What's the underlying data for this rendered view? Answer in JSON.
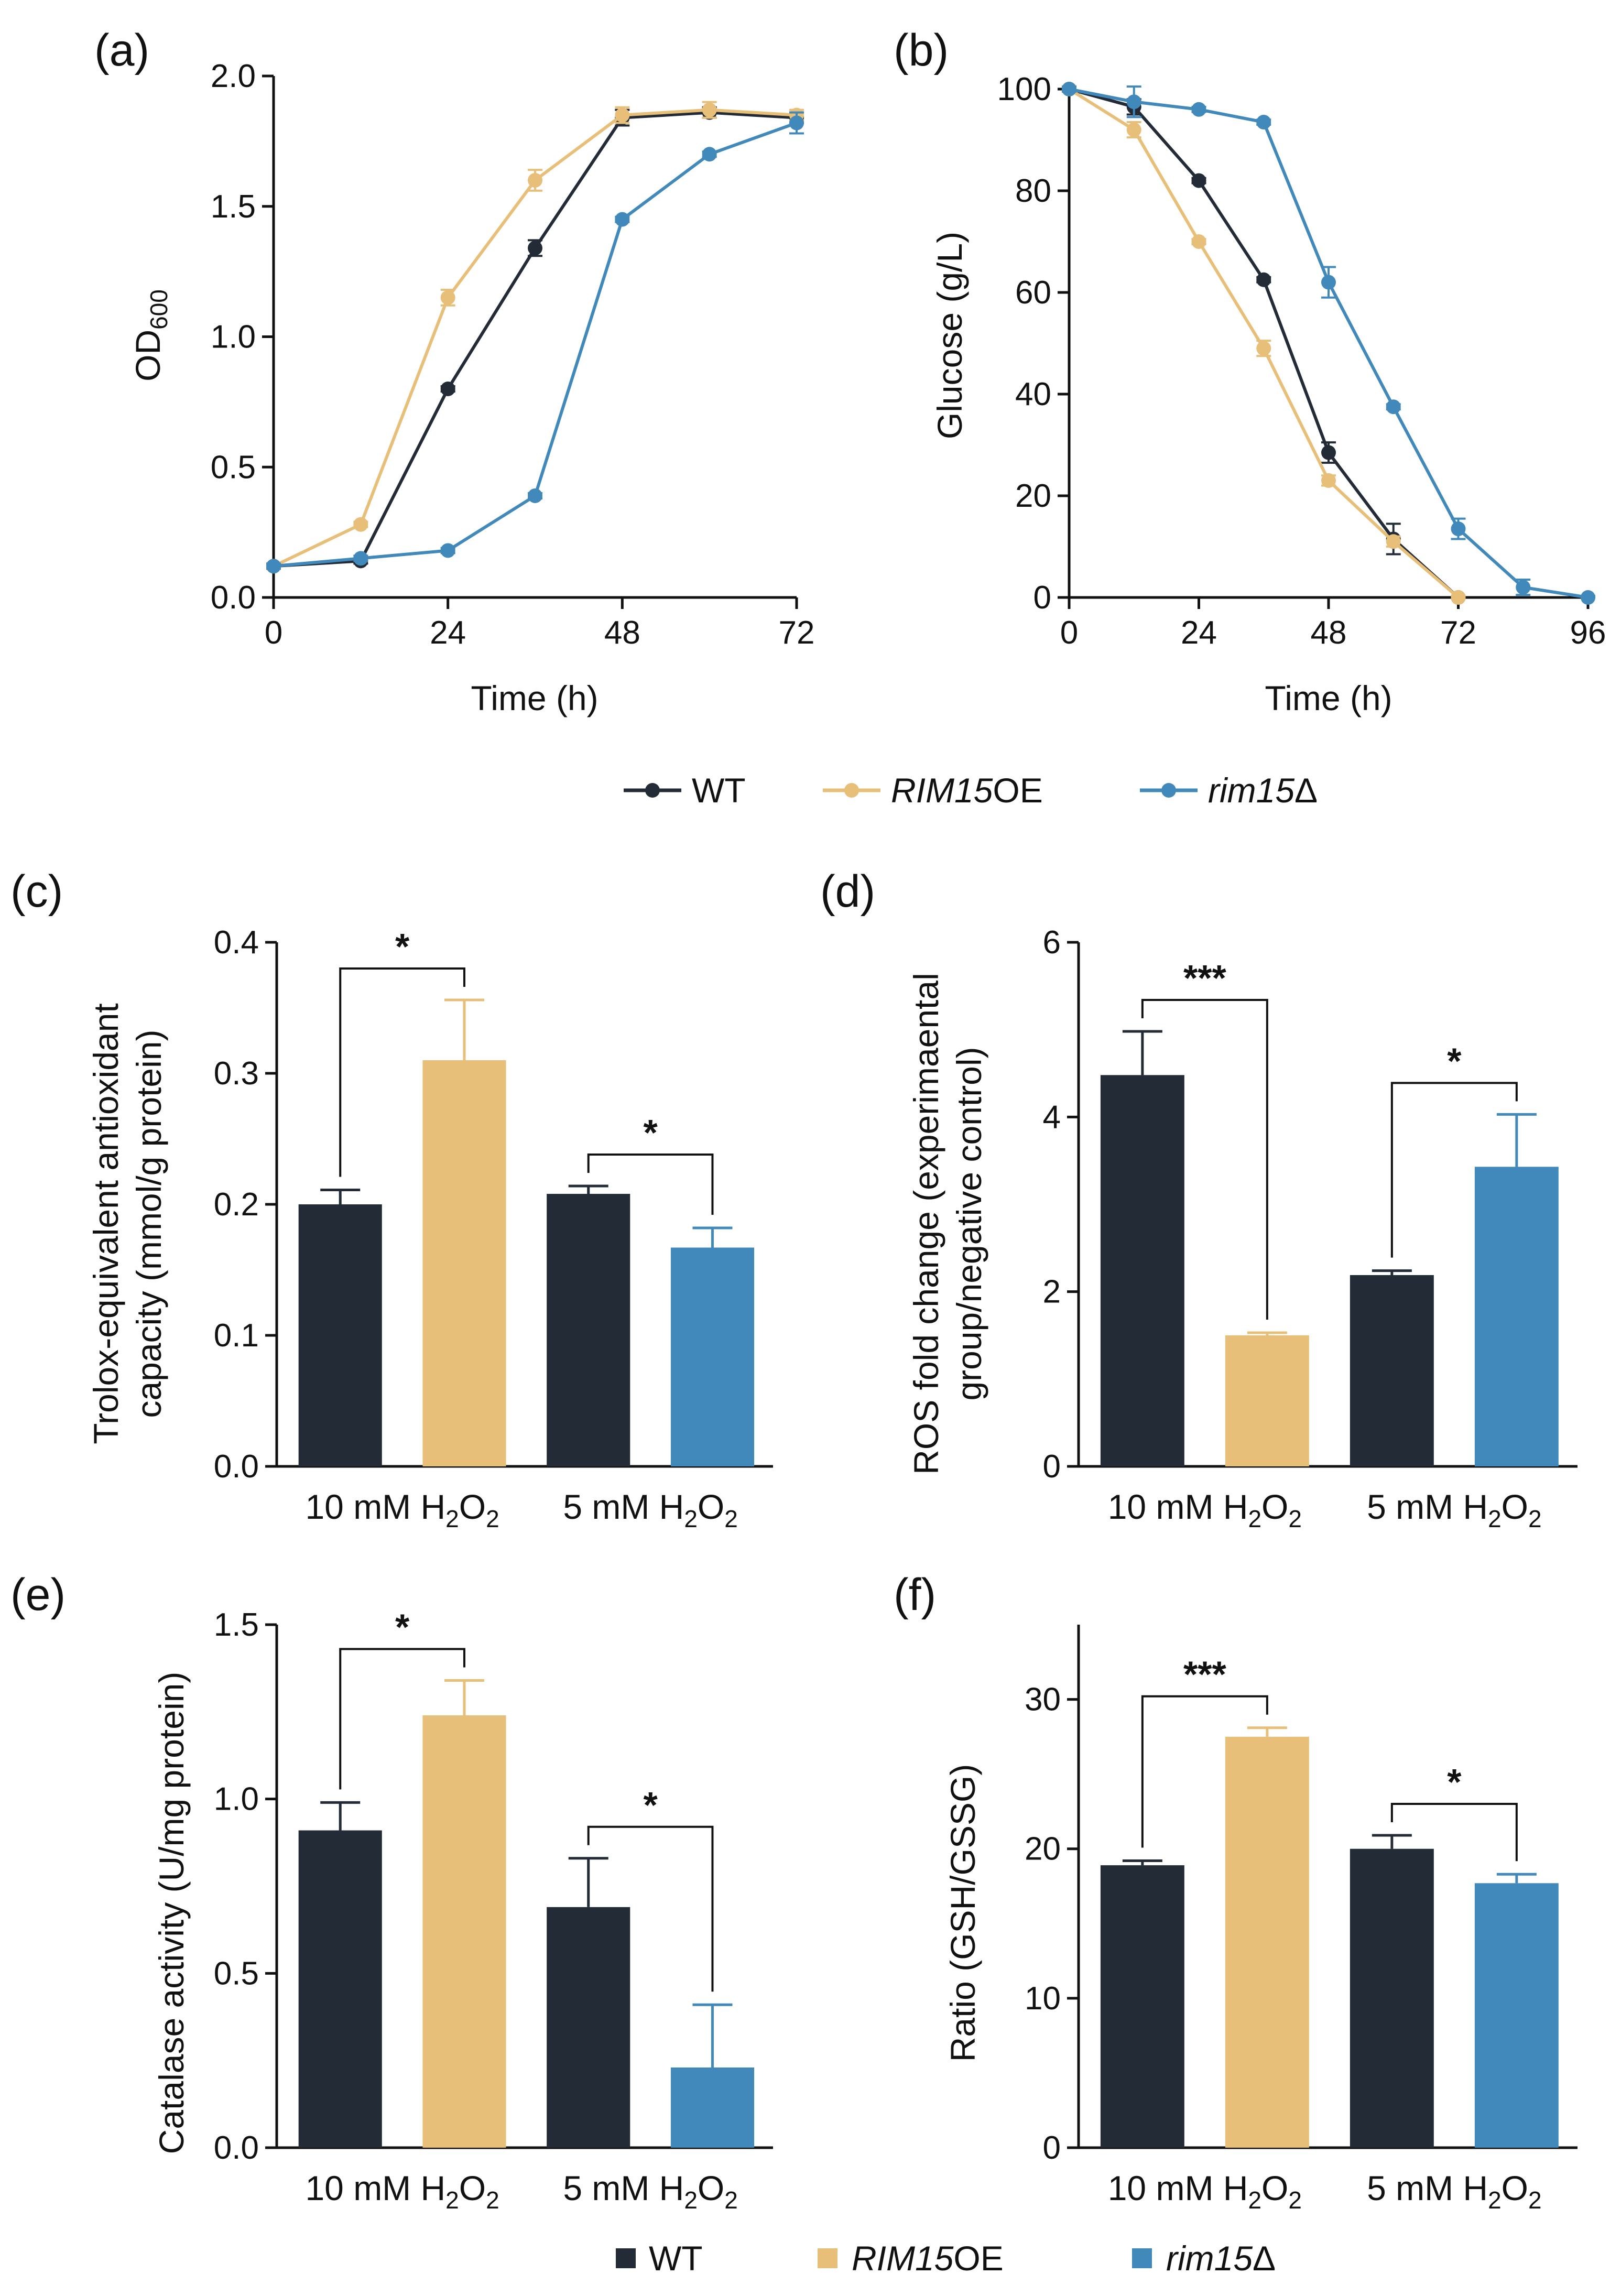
{
  "colors": {
    "WT": "#232b36",
    "RIM15OE": "#e8bf78",
    "rim15D": "#4189bb",
    "axis": "#111111"
  },
  "legend": {
    "wt": "WT",
    "oe_italic": "RIM15",
    "oe_suffix": "OE",
    "del_italic": "rim15",
    "del_suffix": "Δ"
  },
  "group_label": {
    "g10_prefix": "10 mM H",
    "g5_prefix": "5 mM H",
    "sub_2": "2",
    "o": "O"
  },
  "chart_data": [
    {
      "id": "a",
      "type": "line",
      "panel_label": "(a)",
      "xlabel": "Time (h)",
      "ylabel_main": "OD",
      "ylabel_sub": "600",
      "xlim": [
        0,
        72
      ],
      "ylim": [
        0,
        2.0
      ],
      "xticks": [
        0,
        24,
        48,
        72
      ],
      "xtick_labels": [
        "0",
        "24",
        "48",
        "72"
      ],
      "yticks": [
        0,
        0.5,
        1.0,
        1.5,
        2.0
      ],
      "ytick_labels": [
        "0.0",
        "0.5",
        "1.0",
        "1.5",
        "2.0"
      ],
      "series": [
        {
          "name": "WT",
          "color_key": "WT",
          "x": [
            0,
            12,
            24,
            36,
            48,
            60,
            72
          ],
          "y": [
            0.12,
            0.14,
            0.8,
            1.34,
            1.84,
            1.86,
            1.84
          ],
          "err": [
            0.01,
            0.01,
            0.01,
            0.03,
            0.03,
            0.02,
            0.02
          ]
        },
        {
          "name": "RIM15OE",
          "color_key": "RIM15OE",
          "x": [
            0,
            12,
            24,
            36,
            48,
            60,
            72
          ],
          "y": [
            0.12,
            0.28,
            1.15,
            1.6,
            1.85,
            1.87,
            1.85
          ],
          "err": [
            0.01,
            0.01,
            0.03,
            0.04,
            0.03,
            0.03,
            0.02
          ]
        },
        {
          "name": "rim15Δ",
          "color_key": "rim15D",
          "x": [
            0,
            12,
            24,
            36,
            48,
            60,
            72
          ],
          "y": [
            0.12,
            0.15,
            0.18,
            0.39,
            1.45,
            1.7,
            1.82
          ],
          "err": [
            0.01,
            0.01,
            0.01,
            0.01,
            0.01,
            0.01,
            0.04
          ]
        }
      ]
    },
    {
      "id": "b",
      "type": "line",
      "panel_label": "(b)",
      "xlabel": "Time (h)",
      "ylabel": "Glucose (g/L)",
      "xlim": [
        0,
        96
      ],
      "ylim": [
        0,
        100
      ],
      "xticks": [
        0,
        24,
        48,
        72,
        96
      ],
      "xtick_labels": [
        "0",
        "24",
        "48",
        "72",
        "96"
      ],
      "yticks": [
        0,
        20,
        40,
        60,
        80,
        100
      ],
      "ytick_labels": [
        "0",
        "20",
        "40",
        "60",
        "80",
        "100"
      ],
      "series": [
        {
          "name": "WT",
          "color_key": "WT",
          "x": [
            0,
            12,
            24,
            36,
            48,
            60,
            72
          ],
          "y": [
            100,
            96.5,
            82,
            62.5,
            28.5,
            11.5,
            0
          ],
          "err": [
            0.5,
            1.5,
            0.5,
            0.5,
            2,
            3,
            0.3
          ]
        },
        {
          "name": "RIM15OE",
          "color_key": "RIM15OE",
          "x": [
            0,
            12,
            24,
            36,
            48,
            60,
            72
          ],
          "y": [
            100,
            92,
            70,
            49,
            23,
            11,
            0
          ],
          "err": [
            0.5,
            1.5,
            0.5,
            1.5,
            1,
            1,
            0.3
          ]
        },
        {
          "name": "rim15Δ",
          "color_key": "rim15D",
          "x": [
            0,
            12,
            24,
            36,
            48,
            60,
            72,
            84,
            96
          ],
          "y": [
            100,
            97.5,
            96,
            93.5,
            62,
            37.5,
            13.5,
            2,
            0
          ],
          "err": [
            0.5,
            3,
            0.5,
            0.5,
            3,
            0.5,
            2,
            1.5,
            0.3
          ]
        }
      ]
    },
    {
      "id": "c",
      "type": "bar",
      "panel_label": "(c)",
      "ylabel_lines": [
        "Trolox-equivalent  antioxidant",
        "capacity (mmol/g protein)"
      ],
      "ylim": [
        0,
        0.4
      ],
      "yticks": [
        0,
        0.1,
        0.2,
        0.3,
        0.4
      ],
      "ytick_labels": [
        "0.0",
        "0.1",
        "0.2",
        "0.3",
        "0.4"
      ],
      "bars": [
        {
          "group": "10 mM",
          "strain": "WT",
          "color_key": "WT",
          "value": 0.2,
          "err": 0.011
        },
        {
          "group": "10 mM",
          "strain": "RIM15OE",
          "color_key": "RIM15OE",
          "value": 0.31,
          "err": 0.046
        },
        {
          "group": "5 mM",
          "strain": "WT",
          "color_key": "WT",
          "value": 0.208,
          "err": 0.006
        },
        {
          "group": "5 mM",
          "strain": "rim15Δ",
          "color_key": "rim15D",
          "value": 0.167,
          "err": 0.015
        }
      ],
      "significance": [
        {
          "bars": [
            0,
            1
          ],
          "label": "*"
        },
        {
          "bars": [
            2,
            3
          ],
          "label": "*"
        }
      ]
    },
    {
      "id": "d",
      "type": "bar",
      "panel_label": "(d)",
      "ylabel_lines": [
        "ROS fold change (experimaental",
        "group/negative control)"
      ],
      "ylim": [
        0,
        6
      ],
      "yticks": [
        0,
        2,
        4,
        6
      ],
      "ytick_labels": [
        "0",
        "2",
        "4",
        "6"
      ],
      "bars": [
        {
          "group": "10 mM",
          "strain": "WT",
          "color_key": "WT",
          "value": 4.48,
          "err": 0.5
        },
        {
          "group": "10 mM",
          "strain": "RIM15OE",
          "color_key": "RIM15OE",
          "value": 1.5,
          "err": 0.03
        },
        {
          "group": "5 mM",
          "strain": "WT",
          "color_key": "WT",
          "value": 2.19,
          "err": 0.05
        },
        {
          "group": "5 mM",
          "strain": "rim15Δ",
          "color_key": "rim15D",
          "value": 3.43,
          "err": 0.6
        }
      ],
      "significance": [
        {
          "bars": [
            0,
            1
          ],
          "label": "***"
        },
        {
          "bars": [
            2,
            3
          ],
          "label": "*"
        }
      ]
    },
    {
      "id": "e",
      "type": "bar",
      "panel_label": "(e)",
      "ylabel_lines": [
        "Catalase activity (U/mg protein)"
      ],
      "ylim": [
        0,
        1.5
      ],
      "yticks": [
        0,
        0.5,
        1.0,
        1.5
      ],
      "ytick_labels": [
        "0.0",
        "0.5",
        "1.0",
        "1.5"
      ],
      "bars": [
        {
          "group": "10 mM",
          "strain": "WT",
          "color_key": "WT",
          "value": 0.91,
          "err": 0.08
        },
        {
          "group": "10 mM",
          "strain": "RIM15OE",
          "color_key": "RIM15OE",
          "value": 1.24,
          "err": 0.1
        },
        {
          "group": "5 mM",
          "strain": "WT",
          "color_key": "WT",
          "value": 0.69,
          "err": 0.14
        },
        {
          "group": "5 mM",
          "strain": "rim15Δ",
          "color_key": "rim15D",
          "value": 0.23,
          "err": 0.18
        }
      ],
      "significance": [
        {
          "bars": [
            0,
            1
          ],
          "label": "*"
        },
        {
          "bars": [
            2,
            3
          ],
          "label": "*"
        }
      ]
    },
    {
      "id": "f",
      "type": "bar",
      "panel_label": "(f)",
      "ylabel_lines": [
        "Ratio (GSH/GSSG)"
      ],
      "ylim": [
        0,
        35
      ],
      "yticks": [
        0,
        10,
        20,
        30
      ],
      "ytick_labels": [
        "0",
        "10",
        "20",
        "30"
      ],
      "bars": [
        {
          "group": "10 mM",
          "strain": "WT",
          "color_key": "WT",
          "value": 18.9,
          "err": 0.3
        },
        {
          "group": "10 mM",
          "strain": "RIM15OE",
          "color_key": "RIM15OE",
          "value": 27.5,
          "err": 0.6
        },
        {
          "group": "5 mM",
          "strain": "WT",
          "color_key": "WT",
          "value": 20.0,
          "err": 0.9
        },
        {
          "group": "5 mM",
          "strain": "rim15Δ",
          "color_key": "rim15D",
          "value": 17.7,
          "err": 0.6
        }
      ],
      "significance": [
        {
          "bars": [
            0,
            1
          ],
          "label": "***"
        },
        {
          "bars": [
            2,
            3
          ],
          "label": "*"
        }
      ]
    }
  ]
}
